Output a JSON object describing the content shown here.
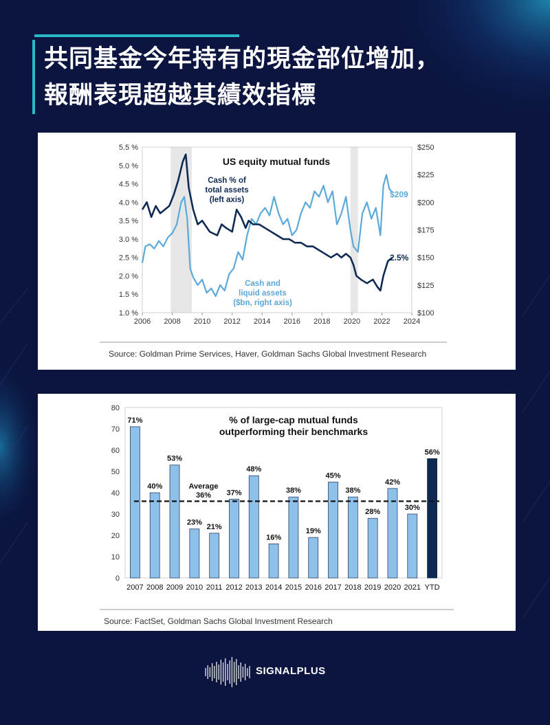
{
  "title_lines": [
    "共同基金今年持有的現金部位增加，",
    "報酬表現超越其績效指標"
  ],
  "brand": {
    "name": "SIGNALPLUS",
    "icon": "signal-wave-logo-icon"
  },
  "colors": {
    "background": "#0b1540",
    "accent": "#2bb7c9",
    "dark_series": "#0e2a52",
    "light_series": "#5ba8db",
    "bar_light": "#8ec1ea",
    "bar_dark": "#0e2a52"
  },
  "chart_data": [
    {
      "type": "line",
      "title": "US equity mutual funds",
      "source": "Source: Goldman Prime Services, Haver, Goldman Sachs Global Investment Research",
      "x_ticks": [
        "2006",
        "2008",
        "2010",
        "2012",
        "2014",
        "2016",
        "2018",
        "2020",
        "2022",
        "2024"
      ],
      "xlim": [
        2006,
        2024
      ],
      "left_ticks": [
        "5.5 %",
        "5.0 %",
        "4.5 %",
        "4.0 %",
        "3.5 %",
        "3.0 %",
        "2.5 %",
        "2.0 %",
        "1.5 %",
        "1.0 %"
      ],
      "ylim_left": [
        1.0,
        5.5
      ],
      "right_ticks": [
        "$250",
        "$225",
        "$200",
        "$175",
        "$150",
        "$125",
        "$100"
      ],
      "ylim_right": [
        100,
        250
      ],
      "shaded_ranges": [
        [
          2007.9,
          2009.3
        ],
        [
          2019.9,
          2020.4
        ]
      ],
      "series": [
        {
          "name": "Cash % of total assets (left axis)",
          "label_lines": [
            "Cash % of",
            "total assets",
            "(left axis)"
          ],
          "end_label": "2.5%",
          "axis": "left",
          "x": [
            2006.0,
            2006.3,
            2006.6,
            2006.9,
            2007.2,
            2007.5,
            2007.8,
            2008.1,
            2008.4,
            2008.7,
            2008.9,
            2009.1,
            2009.4,
            2009.7,
            2010.0,
            2010.5,
            2011.0,
            2011.3,
            2011.6,
            2012.0,
            2012.3,
            2012.6,
            2012.9,
            2013.1,
            2013.4,
            2013.8,
            2014.2,
            2014.6,
            2015.0,
            2015.4,
            2015.8,
            2016.2,
            2016.6,
            2017.0,
            2017.4,
            2017.8,
            2018.2,
            2018.6,
            2019.0,
            2019.3,
            2019.6,
            2019.9,
            2020.1,
            2020.3,
            2020.6,
            2021.0,
            2021.4,
            2021.7,
            2021.9,
            2022.1,
            2022.4,
            2022.7
          ],
          "y": [
            3.8,
            4.0,
            3.6,
            3.9,
            3.7,
            3.8,
            3.9,
            4.2,
            4.6,
            5.1,
            5.3,
            4.4,
            3.8,
            3.4,
            3.5,
            3.2,
            3.1,
            3.4,
            3.3,
            3.2,
            3.8,
            3.6,
            3.3,
            3.5,
            3.4,
            3.4,
            3.3,
            3.2,
            3.1,
            3.0,
            3.0,
            2.9,
            2.9,
            2.8,
            2.8,
            2.7,
            2.6,
            2.5,
            2.6,
            2.5,
            2.6,
            2.5,
            2.3,
            2.0,
            1.9,
            1.8,
            1.9,
            1.7,
            1.6,
            2.0,
            2.4,
            2.5
          ]
        },
        {
          "name": "Cash and liquid assets ($bn, right axis)",
          "label_lines": [
            "Cash and",
            "liquid assets",
            "($bn, right axis)"
          ],
          "end_label": "$209",
          "axis": "right",
          "x": [
            2006.0,
            2006.2,
            2006.5,
            2006.8,
            2007.1,
            2007.4,
            2007.7,
            2008.0,
            2008.3,
            2008.6,
            2008.8,
            2009.0,
            2009.2,
            2009.4,
            2009.7,
            2010.0,
            2010.3,
            2010.6,
            2010.9,
            2011.2,
            2011.5,
            2011.8,
            2012.1,
            2012.4,
            2012.7,
            2013.0,
            2013.3,
            2013.6,
            2013.9,
            2014.2,
            2014.5,
            2014.8,
            2015.1,
            2015.4,
            2015.7,
            2016.0,
            2016.3,
            2016.6,
            2016.9,
            2017.2,
            2017.5,
            2017.8,
            2018.1,
            2018.4,
            2018.7,
            2019.0,
            2019.3,
            2019.6,
            2019.9,
            2020.1,
            2020.4,
            2020.7,
            2021.0,
            2021.3,
            2021.6,
            2021.9,
            2022.1,
            2022.3,
            2022.5,
            2022.7
          ],
          "y": [
            145,
            160,
            162,
            158,
            165,
            160,
            168,
            172,
            180,
            200,
            205,
            185,
            140,
            132,
            125,
            130,
            118,
            122,
            115,
            125,
            120,
            135,
            140,
            155,
            148,
            170,
            185,
            180,
            190,
            195,
            188,
            205,
            190,
            180,
            185,
            170,
            175,
            190,
            200,
            195,
            210,
            205,
            215,
            200,
            210,
            180,
            190,
            205,
            175,
            160,
            155,
            190,
            200,
            185,
            195,
            170,
            215,
            225,
            212,
            209
          ]
        }
      ]
    },
    {
      "type": "bar",
      "title_lines": [
        "% of large-cap mutual funds",
        "outperforming their benchmarks"
      ],
      "source": "Source: FactSet, Goldman Sachs Global Investment Research",
      "categories": [
        "2007",
        "2008",
        "2009",
        "2010",
        "2011",
        "2012",
        "2013",
        "2014",
        "2015",
        "2016",
        "2017",
        "2018",
        "2019",
        "2020",
        "2021",
        "YTD"
      ],
      "values": [
        71,
        40,
        53,
        23,
        21,
        37,
        48,
        16,
        38,
        19,
        45,
        38,
        28,
        42,
        30,
        56
      ],
      "value_labels": [
        "71%",
        "40%",
        "53%",
        "23%",
        "21%",
        "37%",
        "48%",
        "16%",
        "38%",
        "19%",
        "45%",
        "38%",
        "28%",
        "42%",
        "30%",
        "56%"
      ],
      "y_ticks": [
        "0",
        "10",
        "20",
        "30",
        "40",
        "50",
        "60",
        "70",
        "80"
      ],
      "ylim": [
        0,
        80
      ],
      "average": {
        "value": 36,
        "label_lines": [
          "Average",
          "36%"
        ]
      },
      "highlight_category": "YTD"
    }
  ]
}
